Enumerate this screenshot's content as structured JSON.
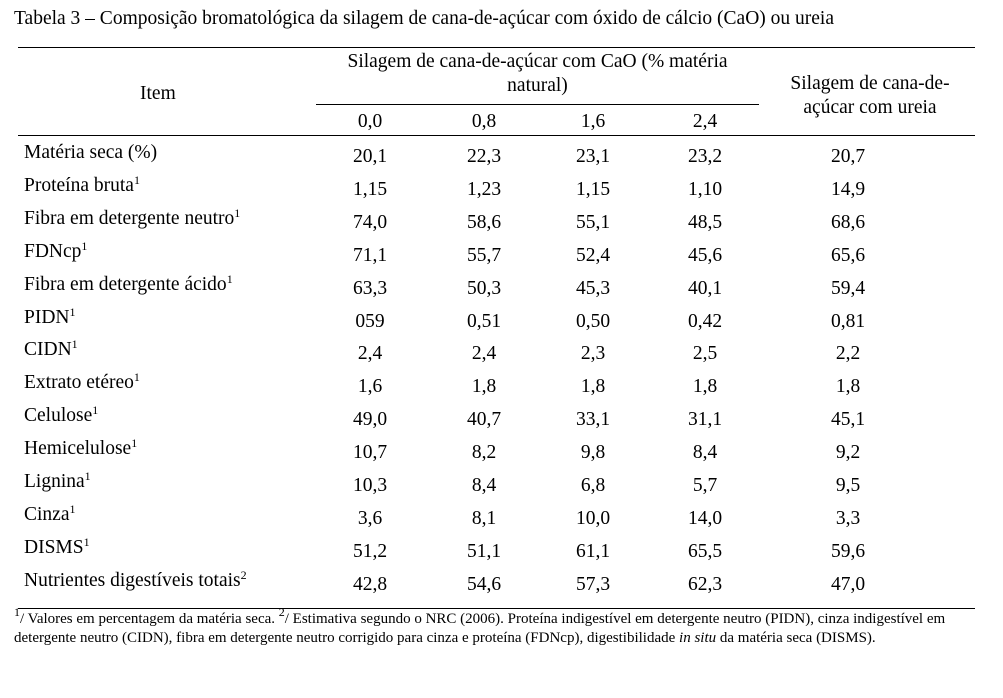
{
  "table": {
    "title": "Tabela 3 – Composição bromatológica da silagem de cana-de-açúcar com óxido de cálcio (CaO) ou ureia",
    "header": {
      "item": "Item",
      "cao_group_line1": "Silagem de cana-de-açúcar com CaO (% matéria",
      "cao_group_line2": "natural)",
      "urea_line1": "Silagem de cana-de-",
      "urea_line2": "açúcar com ureia",
      "doses": [
        "0,0",
        "0,8",
        "1,6",
        "2,4"
      ]
    },
    "rows": [
      {
        "item": "Matéria seca (%)",
        "sup": "",
        "values": [
          "20,1",
          "22,3",
          "23,1",
          "23,2",
          "20,7"
        ]
      },
      {
        "item": "Proteína bruta",
        "sup": "1",
        "values": [
          "1,15",
          "1,23",
          "1,15",
          "1,10",
          "14,9"
        ]
      },
      {
        "item": "Fibra em detergente neutro",
        "sup": "1",
        "values": [
          "74,0",
          "58,6",
          "55,1",
          "48,5",
          "68,6"
        ]
      },
      {
        "item": "FDNcp",
        "sup": "1",
        "values": [
          "71,1",
          "55,7",
          "52,4",
          "45,6",
          "65,6"
        ]
      },
      {
        "item": "Fibra em detergente ácido",
        "sup": "1",
        "values": [
          "63,3",
          "50,3",
          "45,3",
          "40,1",
          "59,4"
        ]
      },
      {
        "item": "PIDN",
        "sup": "1",
        "values": [
          "059",
          "0,51",
          "0,50",
          "0,42",
          "0,81"
        ]
      },
      {
        "item": "CIDN",
        "sup": "1",
        "values": [
          "2,4",
          "2,4",
          "2,3",
          "2,5",
          "2,2"
        ]
      },
      {
        "item": "Extrato etéreo",
        "sup": "1",
        "values": [
          "1,6",
          "1,8",
          "1,8",
          "1,8",
          "1,8"
        ]
      },
      {
        "item": "Celulose",
        "sup": "1",
        "values": [
          "49,0",
          "40,7",
          "33,1",
          "31,1",
          "45,1"
        ]
      },
      {
        "item": "Hemicelulose",
        "sup": "1",
        "values": [
          "10,7",
          "8,2",
          "9,8",
          "8,4",
          "9,2"
        ]
      },
      {
        "item": "Lignina",
        "sup": "1",
        "values": [
          "10,3",
          "8,4",
          "6,8",
          "5,7",
          "9,5"
        ]
      },
      {
        "item": "Cinza",
        "sup": "1",
        "values": [
          "3,6",
          "8,1",
          "10,0",
          "14,0",
          "3,3"
        ]
      },
      {
        "item": "DISMS",
        "sup": "1",
        "values": [
          "51,2",
          "51,1",
          "61,1",
          "65,5",
          "59,6"
        ]
      },
      {
        "item": "Nutrientes digestíveis totais",
        "sup": "2",
        "values": [
          "42,8",
          "54,6",
          "57,3",
          "62,3",
          "47,0"
        ]
      }
    ],
    "footnote": {
      "sup1": "1",
      "part1": "/ Valores em percentagem da matéria seca.",
      "sup2": "2",
      "part2": "/ Estimativa segundo o NRC (2006). Proteína indigestível em detergente neutro (PIDN), cinza indigestível em detergente neutro (CIDN), fibra em detergente neutro corrigido para cinza e proteína (FDNcp), digestibilidade",
      "italic": "in situ",
      "part3": "da matéria seca (DISMS)."
    }
  }
}
